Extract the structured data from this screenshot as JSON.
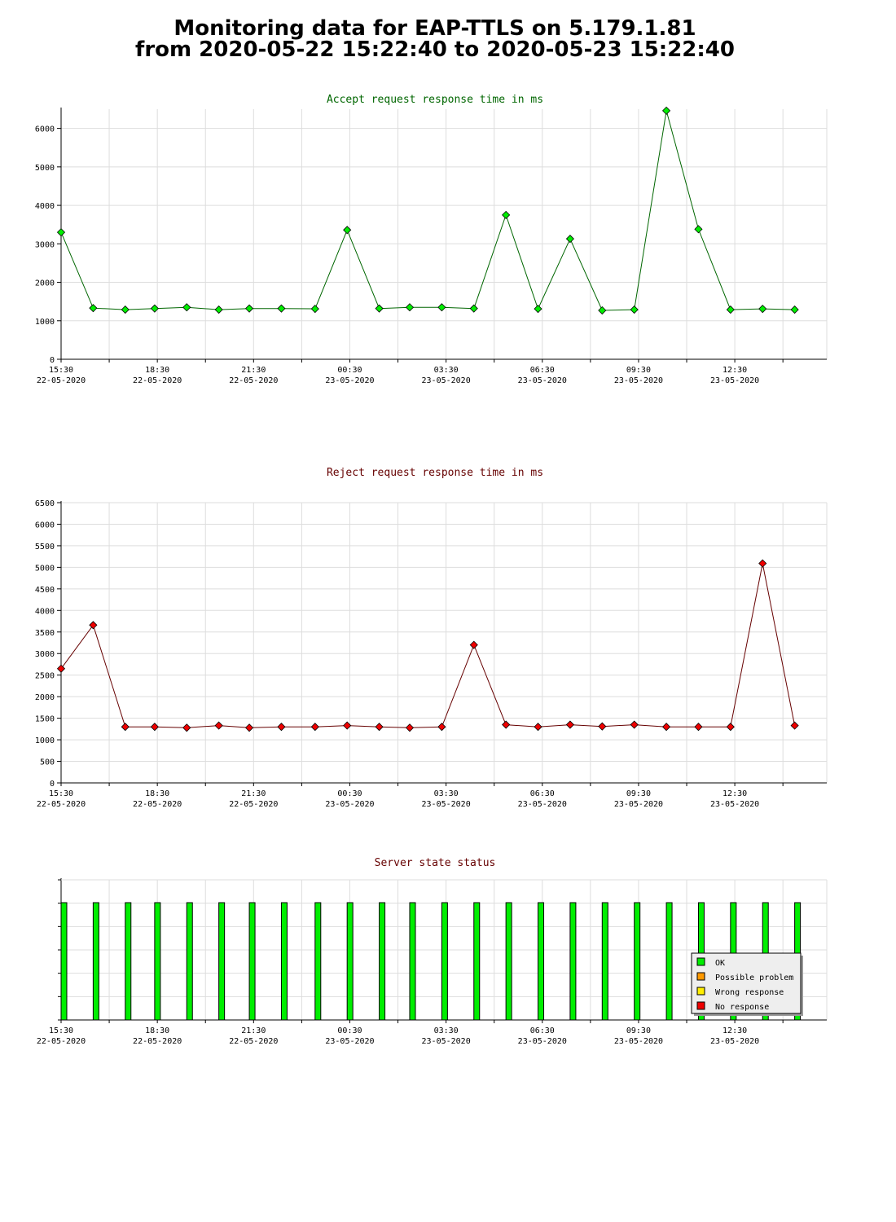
{
  "page": {
    "title_line1": "Monitoring data for EAP-TTLS on 5.179.1.81",
    "title_line2": "from 2020-05-22 15:22:40 to 2020-05-23 15:22:40"
  },
  "colors": {
    "accept_title": "#006600",
    "reject_title": "#660000",
    "status_title": "#660000",
    "accept_marker": "#00ee00",
    "reject_marker": "#ee0000",
    "status_bar": "#00ee00",
    "grid": "#dddddd"
  },
  "x_ticks": [
    {
      "time": "15:30",
      "date": "22-05-2020"
    },
    {
      "time": "18:30",
      "date": "22-05-2020"
    },
    {
      "time": "21:30",
      "date": "22-05-2020"
    },
    {
      "time": "00:30",
      "date": "23-05-2020"
    },
    {
      "time": "03:30",
      "date": "23-05-2020"
    },
    {
      "time": "06:30",
      "date": "23-05-2020"
    },
    {
      "time": "09:30",
      "date": "23-05-2020"
    },
    {
      "time": "12:30",
      "date": "23-05-2020"
    }
  ],
  "legend": {
    "items": [
      {
        "label": "OK",
        "color": "#00ee00"
      },
      {
        "label": "Possible problem",
        "color": "#ff9900"
      },
      {
        "label": "Wrong response",
        "color": "#ffee00"
      },
      {
        "label": "No response",
        "color": "#ee0000"
      }
    ]
  },
  "chart_data": [
    {
      "type": "line",
      "title": "Accept request response time in ms",
      "x_range": [
        "2020-05-22 15:30",
        "2020-05-23 15:22"
      ],
      "ylim": [
        0,
        6500
      ],
      "y_ticks": [
        0,
        1000,
        2000,
        3000,
        4000,
        5000,
        6000
      ],
      "grid": true,
      "series": [
        {
          "x": [
            "2020-05-22 15:30",
            "2020-05-22 16:30",
            "2020-05-22 17:30",
            "2020-05-22 18:25",
            "2020-05-22 19:25",
            "2020-05-22 20:25",
            "2020-05-22 21:22",
            "2020-05-22 22:22",
            "2020-05-22 23:25",
            "2020-05-23 00:25",
            "2020-05-23 01:25",
            "2020-05-23 02:22",
            "2020-05-23 03:22",
            "2020-05-23 04:22",
            "2020-05-23 05:22",
            "2020-05-23 06:22",
            "2020-05-23 07:22",
            "2020-05-23 08:22",
            "2020-05-23 09:22",
            "2020-05-23 10:22",
            "2020-05-23 11:22",
            "2020-05-23 12:22",
            "2020-05-23 13:22",
            "2020-05-23 14:22"
          ],
          "y": [
            3300,
            1330,
            1290,
            1320,
            1350,
            1290,
            1320,
            1320,
            1310,
            3360,
            1320,
            1350,
            1350,
            1320,
            3750,
            1310,
            3130,
            1270,
            1290,
            6460,
            3380,
            1290,
            1310,
            1290
          ]
        }
      ]
    },
    {
      "type": "line",
      "title": "Reject request response time in ms",
      "x_range": [
        "2020-05-22 15:30",
        "2020-05-23 15:22"
      ],
      "ylim": [
        0,
        6500
      ],
      "y_ticks": [
        0,
        500,
        1000,
        1500,
        2000,
        2500,
        3000,
        3500,
        4000,
        4500,
        5000,
        5500,
        6000,
        6500
      ],
      "grid": true,
      "series": [
        {
          "x": [
            "2020-05-22 15:30",
            "2020-05-22 16:30",
            "2020-05-22 17:30",
            "2020-05-22 18:25",
            "2020-05-22 19:25",
            "2020-05-22 20:25",
            "2020-05-22 21:22",
            "2020-05-22 22:22",
            "2020-05-22 23:25",
            "2020-05-23 00:25",
            "2020-05-23 01:25",
            "2020-05-23 02:22",
            "2020-05-23 03:22",
            "2020-05-23 04:22",
            "2020-05-23 05:22",
            "2020-05-23 06:22",
            "2020-05-23 07:22",
            "2020-05-23 08:22",
            "2020-05-23 09:22",
            "2020-05-23 10:22",
            "2020-05-23 11:22",
            "2020-05-23 12:22",
            "2020-05-23 13:22",
            "2020-05-23 14:22"
          ],
          "y": [
            2650,
            3660,
            1300,
            1300,
            1280,
            1330,
            1280,
            1300,
            1300,
            1330,
            1300,
            1280,
            1300,
            3200,
            1350,
            1300,
            1350,
            1310,
            1350,
            1300,
            1300,
            1300,
            5090,
            1330
          ]
        }
      ]
    },
    {
      "type": "bar",
      "title": "Server state status",
      "x_range": [
        "2020-05-22 15:30",
        "2020-05-23 15:22"
      ],
      "grid": true,
      "legend_position": "bottom-right",
      "categories": [
        "2020-05-22 15:30",
        "2020-05-22 16:30",
        "2020-05-22 17:30",
        "2020-05-22 18:25",
        "2020-05-22 19:25",
        "2020-05-22 20:25",
        "2020-05-22 21:22",
        "2020-05-22 22:22",
        "2020-05-22 23:25",
        "2020-05-23 00:25",
        "2020-05-23 01:25",
        "2020-05-23 02:22",
        "2020-05-23 03:22",
        "2020-05-23 04:22",
        "2020-05-23 05:22",
        "2020-05-23 06:22",
        "2020-05-23 07:22",
        "2020-05-23 08:22",
        "2020-05-23 09:22",
        "2020-05-23 10:22",
        "2020-05-23 11:22",
        "2020-05-23 12:22",
        "2020-05-23 13:22",
        "2020-05-23 14:22"
      ],
      "values": [
        "OK",
        "OK",
        "OK",
        "OK",
        "OK",
        "OK",
        "OK",
        "OK",
        "OK",
        "OK",
        "OK",
        "OK",
        "OK",
        "OK",
        "OK",
        "OK",
        "OK",
        "OK",
        "OK",
        "OK",
        "OK",
        "OK",
        "OK",
        "OK"
      ]
    }
  ]
}
